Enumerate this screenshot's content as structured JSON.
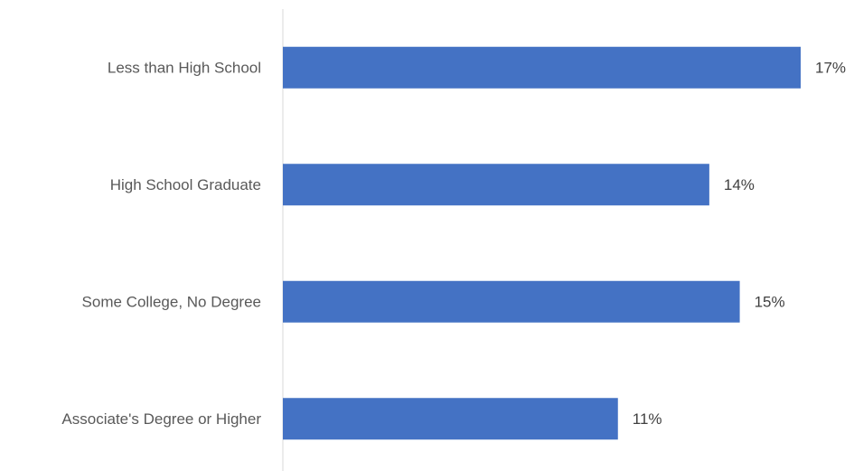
{
  "chart_data": {
    "type": "bar",
    "orientation": "horizontal",
    "title": "",
    "xlabel": "",
    "ylabel": "",
    "categories": [
      "Less than High School",
      "High School Graduate",
      "Some College, No Degree",
      "Associate's Degree or Higher"
    ],
    "values": [
      17,
      14,
      15,
      11
    ],
    "value_labels": [
      "17%",
      "14%",
      "15%",
      "11%"
    ],
    "value_unit": "%",
    "xlim": [
      0,
      17
    ],
    "grid": false,
    "legend": "none",
    "bar_color": "#4472c4"
  }
}
